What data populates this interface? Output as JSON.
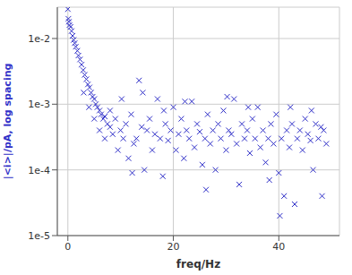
{
  "chart_data": {
    "type": "scatter",
    "x_label": "freq/Hz",
    "y_label": "|<i>|/pA, log spacing",
    "color": "#2f2fc8",
    "marker": "x",
    "log": "y",
    "grid": true,
    "xlim": [
      -2,
      51.5
    ],
    "ylim": [
      1e-05,
      0.03
    ],
    "xticks": [
      0,
      20,
      40
    ],
    "yticks": [
      {
        "value": 1e-05,
        "label": "1e-5"
      },
      {
        "value": 0.0001,
        "label": "1e-4"
      },
      {
        "value": 0.001,
        "label": "1e-3"
      },
      {
        "value": 0.01,
        "label": "1e-2"
      }
    ],
    "x": [
      0,
      0.1,
      0.2,
      0.3,
      0.5,
      0.7,
      0.9,
      1.1,
      1.3,
      1.5,
      1.8,
      2,
      2.3,
      2.6,
      2.9,
      3,
      3.2,
      3.5,
      3.8,
      4,
      4.1,
      4.4,
      4.7,
      5,
      5,
      5.3,
      5.6,
      6,
      6,
      6.3,
      6.7,
      7,
      7,
      7.5,
      8,
      8,
      8.5,
      9,
      9.5,
      10,
      10.5,
      11,
      11.5,
      12,
      12.5,
      13,
      13.5,
      14,
      14.5,
      15,
      15.5,
      16,
      16.5,
      17,
      17.5,
      18,
      18.5,
      19,
      19.5,
      20,
      20.5,
      21,
      21.5,
      22,
      22.5,
      23,
      23.5,
      24,
      24.5,
      25,
      25.5,
      26,
      26.5,
      27,
      27.5,
      28,
      28.5,
      29,
      29.5,
      30,
      30.5,
      31,
      31.5,
      32,
      32.5,
      33,
      33.5,
      34,
      34.5,
      35,
      35.5,
      36,
      36.5,
      37,
      37.5,
      38,
      38.5,
      39,
      39.5,
      40,
      40.5,
      41,
      41.5,
      42,
      42.5,
      43,
      43.5,
      44,
      44.5,
      45,
      45.5,
      46,
      46.5,
      47,
      47.5,
      48,
      48.5,
      49,
      10.2,
      12.2,
      14.2,
      18.2,
      22.2,
      26.2,
      30.2,
      34.2,
      38.2,
      42.2,
      46.2,
      48.2,
      40.2
    ],
    "values": [
      0.028,
      0.02,
      0.018,
      0.016,
      0.015,
      0.013,
      0.011,
      0.0095,
      0.0085,
      0.0075,
      0.0065,
      0.0055,
      0.0048,
      0.004,
      0.0033,
      0.0015,
      0.0028,
      0.0024,
      0.002,
      0.0009,
      0.0018,
      0.0015,
      0.0013,
      0.0012,
      0.0006,
      0.001,
      0.0009,
      0.0008,
      0.0004,
      0.0007,
      0.0006,
      0.00065,
      0.0003,
      0.0005,
      0.00045,
      0.0008,
      0.00035,
      0.0006,
      0.0002,
      0.0004,
      0.0003,
      0.0005,
      0.00015,
      0.0007,
      0.00025,
      0.0003,
      0.0023,
      0.00045,
      0.0001,
      0.0004,
      0.0006,
      0.0002,
      0.00035,
      0.0012,
      0.0003,
      8e-05,
      0.0005,
      0.00028,
      0.0004,
      0.0009,
      0.0002,
      0.00035,
      0.0006,
      0.00015,
      0.0004,
      0.0003,
      0.0011,
      0.00022,
      0.0005,
      0.00038,
      0.00012,
      0.0003,
      0.0007,
      0.00025,
      0.0004,
      0.0001,
      0.0005,
      0.0003,
      0.0008,
      0.0002,
      0.0004,
      0.00035,
      0.0012,
      0.00025,
      6e-05,
      0.0005,
      0.0003,
      0.0004,
      0.00018,
      0.0006,
      0.0003,
      0.0009,
      0.00022,
      0.0004,
      0.00013,
      0.0003,
      0.0005,
      0.00025,
      0.0007,
      9e-05,
      0.0003,
      4e-05,
      0.0004,
      0.00022,
      0.0005,
      3e-05,
      0.0003,
      0.0004,
      0.0002,
      0.0006,
      0.00035,
      0.00028,
      0.0001,
      0.0005,
      0.0003,
      0.00045,
      0.0004,
      0.00025,
      0.0012,
      9e-05,
      0.0015,
      0.0008,
      0.0011,
      5e-05,
      0.0013,
      0.0009,
      7e-05,
      0.0009,
      0.0008,
      4e-05,
      2e-05
    ]
  }
}
